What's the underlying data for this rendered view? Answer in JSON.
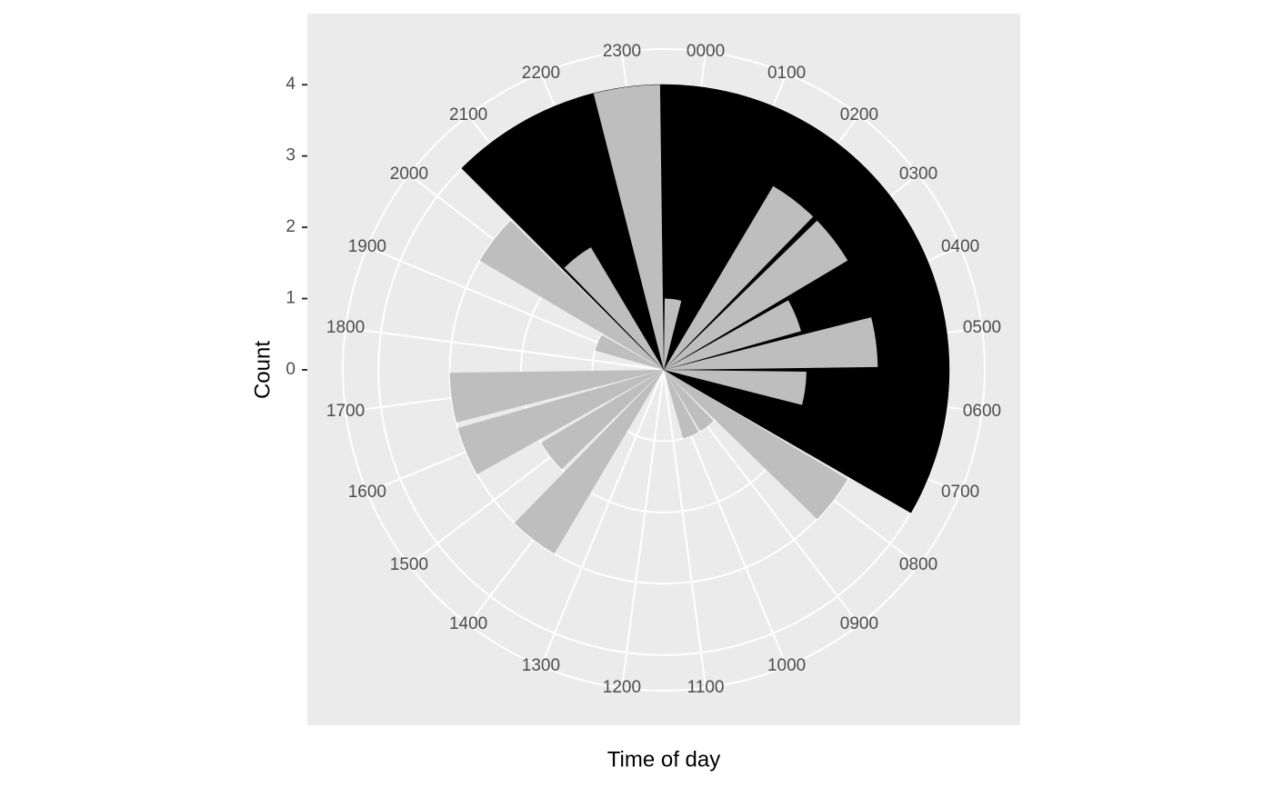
{
  "chart_data": {
    "type": "bar",
    "polar": true,
    "x_label": "Time of day",
    "y_label": "Count",
    "categories": [
      "0000",
      "0100",
      "0200",
      "0300",
      "0400",
      "0500",
      "0600",
      "0700",
      "0800",
      "0900",
      "1000",
      "1100",
      "1200",
      "1300",
      "1400",
      "1500",
      "1600",
      "1700",
      "1800",
      "1900",
      "2000",
      "2100",
      "2200",
      "2300"
    ],
    "series": [
      {
        "color": "#000000",
        "width": 1,
        "values": [
          4,
          4,
          4,
          4,
          4,
          4,
          4,
          4,
          0,
          0,
          0,
          0,
          0,
          0,
          0,
          0,
          0,
          0,
          0,
          0,
          0,
          4,
          4,
          4
        ]
      },
      {
        "color": "#bebebe",
        "width": 0.9,
        "values": [
          1,
          0,
          3,
          3,
          2,
          3,
          2,
          0,
          3,
          1,
          1,
          0,
          0,
          0,
          3,
          2,
          3,
          3,
          0,
          1,
          3,
          2,
          0,
          4
        ]
      }
    ],
    "ylim": [
      0,
      4.5
    ],
    "yticks": [
      0,
      1,
      2,
      3,
      4
    ],
    "grid": true
  }
}
